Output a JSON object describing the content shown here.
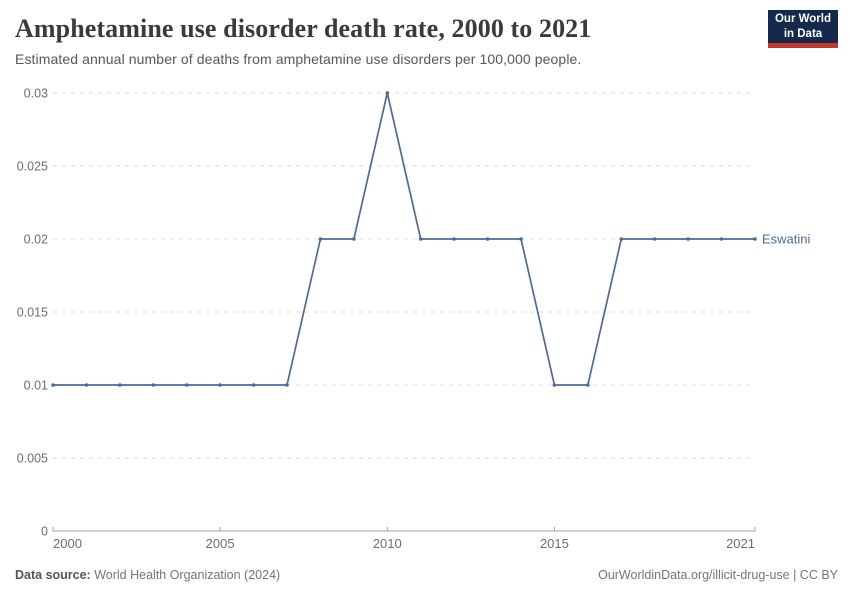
{
  "logo": {
    "line1": "Our World",
    "line2": "in Data",
    "background": "#14294B",
    "bar_color": "#C1392B"
  },
  "chart_data": {
    "type": "line",
    "title": "Amphetamine use disorder death rate, 2000 to 2021",
    "subtitle": "Estimated annual number of deaths from amphetamine use disorders per 100,000 people.",
    "x": [
      2000,
      2001,
      2002,
      2003,
      2004,
      2005,
      2006,
      2007,
      2008,
      2009,
      2010,
      2011,
      2012,
      2013,
      2014,
      2015,
      2016,
      2017,
      2018,
      2019,
      2020,
      2021
    ],
    "series": [
      {
        "name": "Eswatini",
        "color": "#4C6A9C",
        "values": [
          0.01,
          0.01,
          0.01,
          0.01,
          0.01,
          0.01,
          0.01,
          0.01,
          0.02,
          0.02,
          0.03,
          0.02,
          0.02,
          0.02,
          0.02,
          0.01,
          0.01,
          0.02,
          0.02,
          0.02,
          0.02,
          0.02
        ]
      }
    ],
    "xlabel": "",
    "ylabel": "",
    "ylim": [
      0,
      0.03
    ],
    "yticks": [
      0,
      0.005,
      0.01,
      0.015,
      0.02,
      0.025,
      0.03
    ],
    "ytick_labels": [
      "0",
      "0.005",
      "0.01",
      "0.015",
      "0.02",
      "0.025",
      "0.03"
    ],
    "xticks": [
      2000,
      2005,
      2010,
      2015,
      2021
    ],
    "grid": "horizontal-dashed",
    "legend_position": "end-of-line-label",
    "grid_color": "#dddddd",
    "axis_color": "#a3a3a3",
    "tick_label_color": "#6e6e6e"
  },
  "footer": {
    "source_label": "Data source:",
    "source_value": "World Health Organization (2024)",
    "credit": "OurWorldinData.org/illicit-drug-use | CC BY"
  }
}
